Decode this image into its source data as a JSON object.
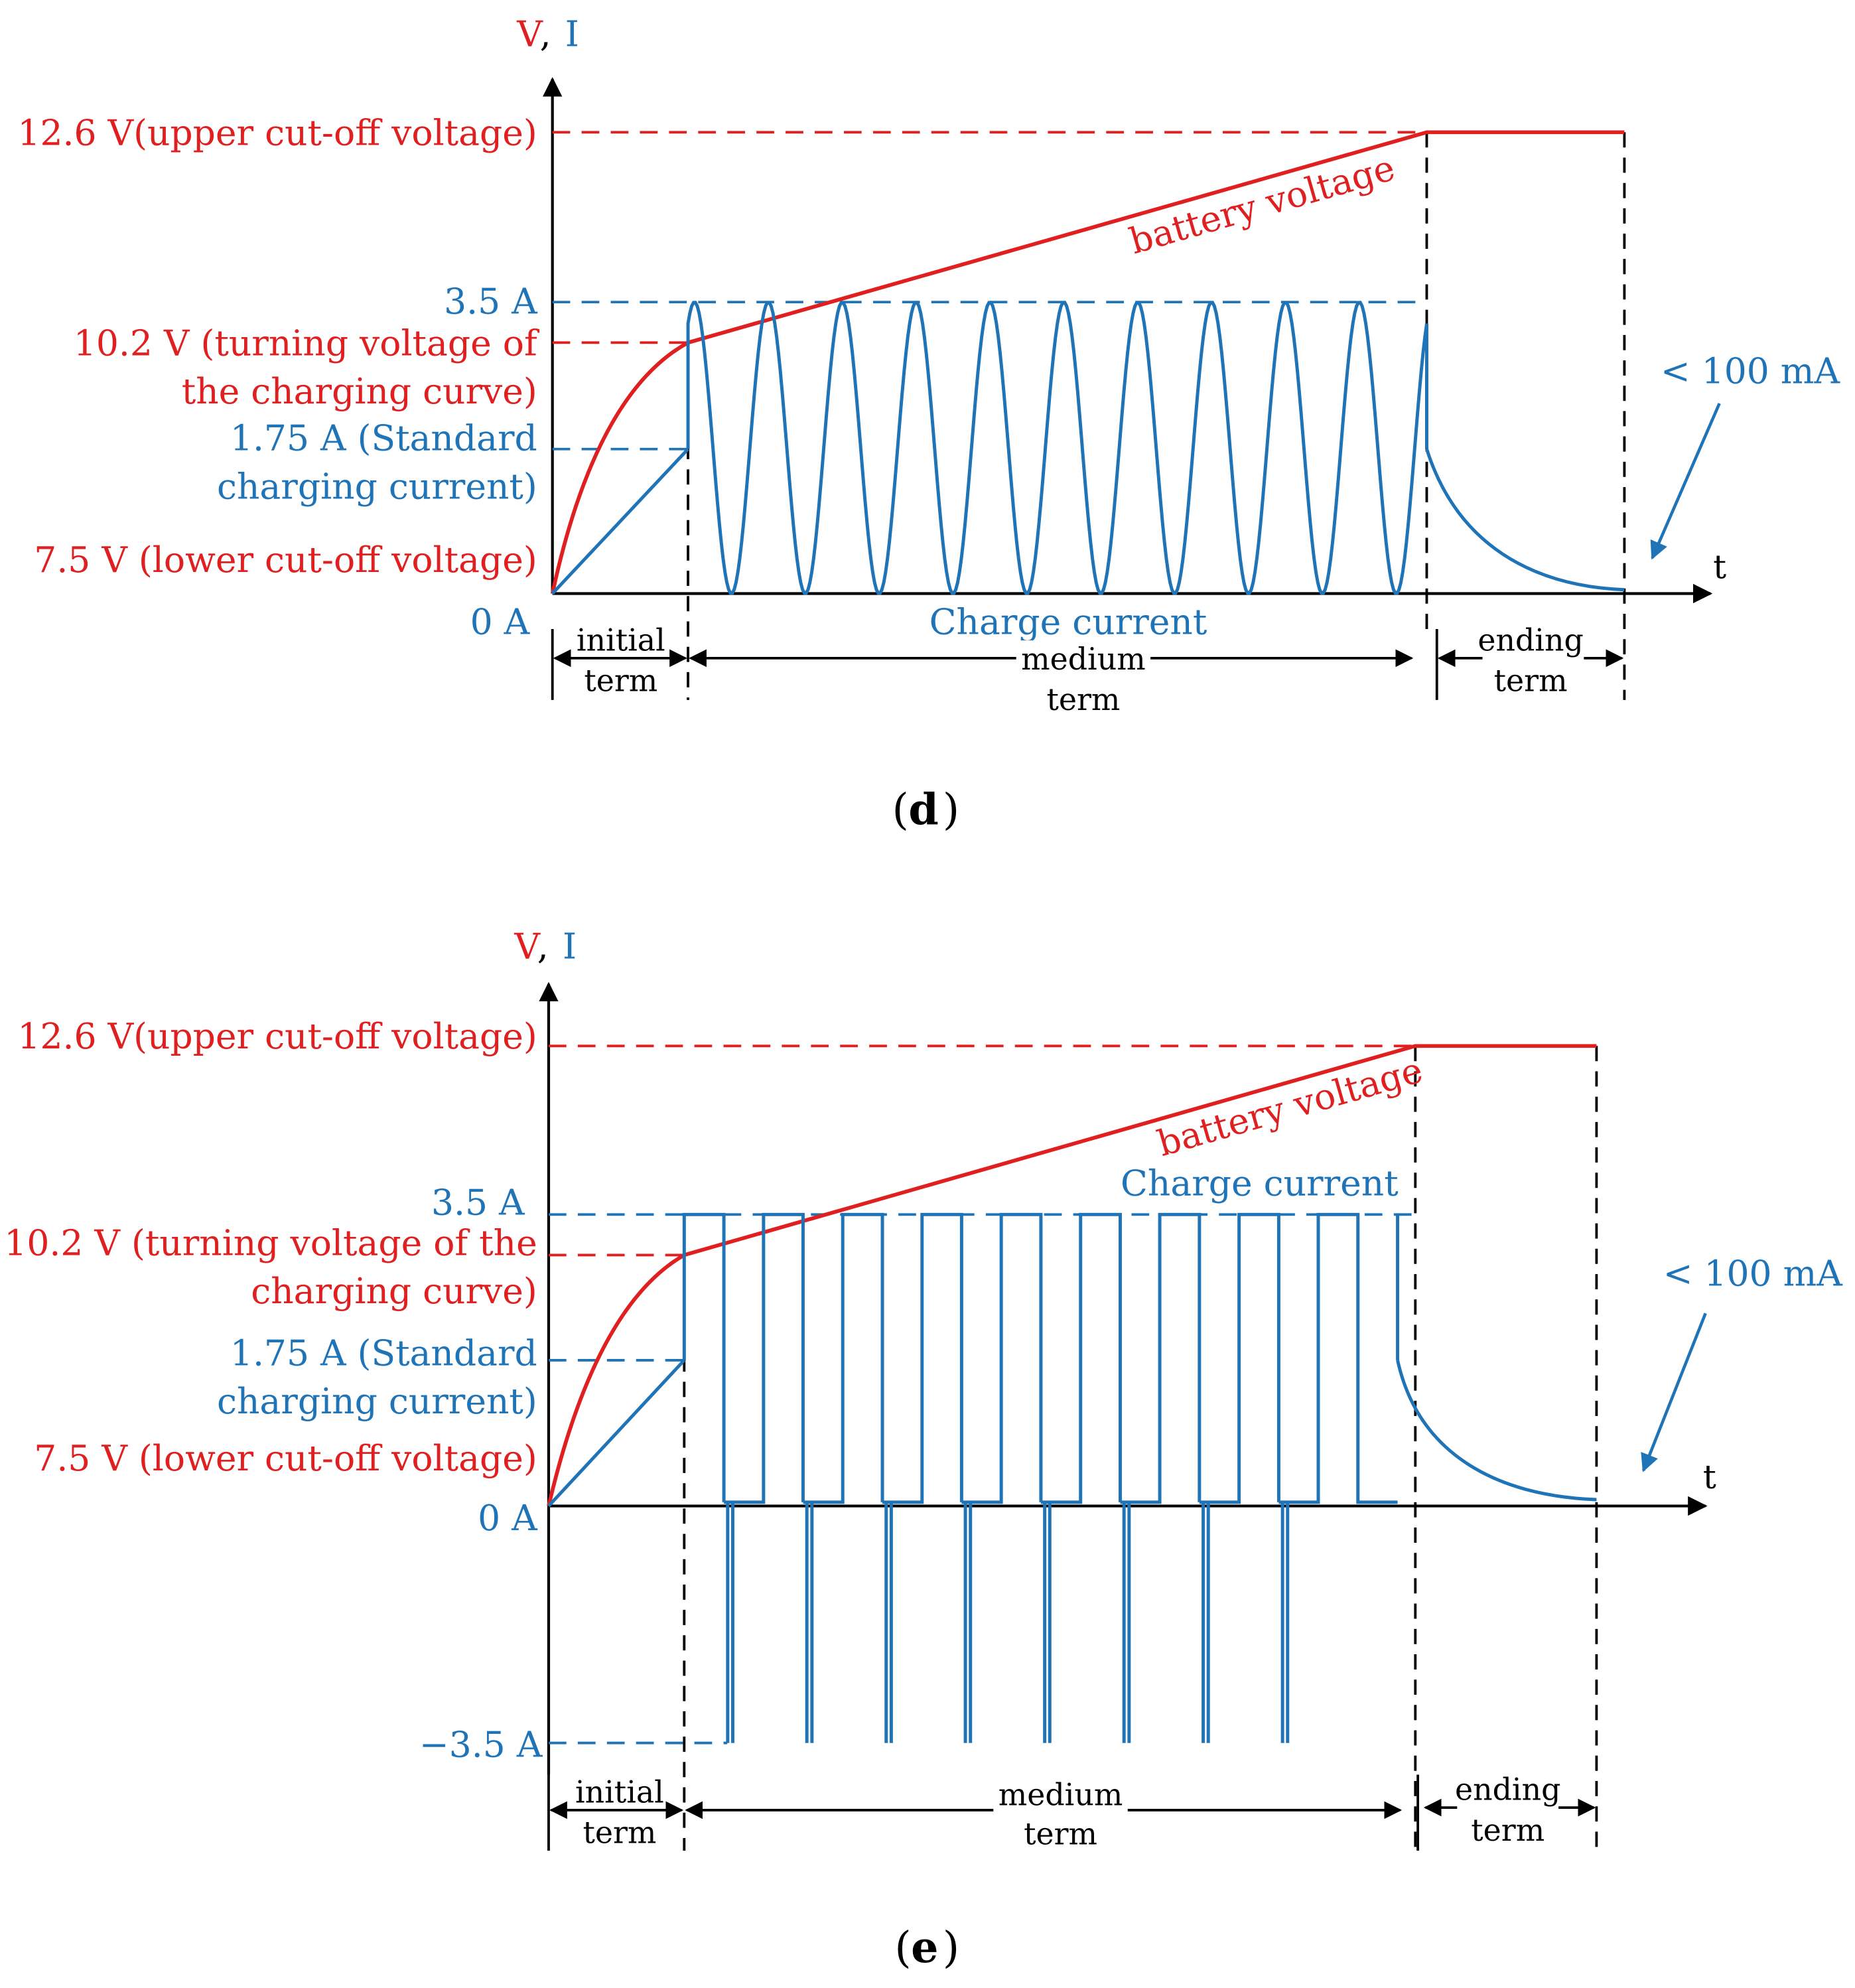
{
  "colors": {
    "voltage": "#e02020",
    "current": "#1f73b7",
    "axis": "#000000"
  },
  "panels": [
    {
      "id": "d",
      "caption": "d",
      "waveform": "sine",
      "pulse_count": 10,
      "axis": {
        "y_label_v": "V",
        "y_label_sep": ", ",
        "y_label_i": "I",
        "x_label": "t"
      },
      "labels": {
        "upper_voltage": "12.6 V(upper cut-off voltage)",
        "current_max": "3.5 A",
        "turning_voltage_l1": "10.2 V (turning voltage of",
        "turning_voltage_l2": "the charging curve)",
        "standard_current_l1": "1.75 A  (Standard",
        "standard_current_l2": "charging current)",
        "lower_voltage": "7.5 V (lower cut-off voltage)",
        "zero_current": "0 A",
        "battery_voltage": "battery voltage",
        "charge_current": "Charge current",
        "end_current": "< 100 mA"
      },
      "terms": {
        "initial_l1": "initial",
        "initial_l2": "term",
        "medium_l1": "medium",
        "medium_l2": "term",
        "ending_l1": "ending",
        "ending_l2": "term"
      }
    },
    {
      "id": "e",
      "caption": "e",
      "waveform": "square-with-negative-pulse",
      "pulse_count": 9,
      "axis": {
        "y_label_v": "V",
        "y_label_sep": ", ",
        "y_label_i": "I",
        "x_label": "t"
      },
      "labels": {
        "upper_voltage": "12.6 V(upper cut-off voltage)",
        "current_max": "3.5 A",
        "turning_voltage_l1": "10.2 V (turning voltage of the",
        "turning_voltage_l2": "charging curve)",
        "standard_current_l1": "1.75 A  (Standard",
        "standard_current_l2": "charging current)",
        "lower_voltage": "7.5 V (lower cut-off voltage)",
        "zero_current": "0 A",
        "current_min": "−3.5 A",
        "battery_voltage": "battery voltage",
        "charge_current": "Charge current",
        "end_current": "< 100 mA"
      },
      "terms": {
        "initial_l1": "initial",
        "initial_l2": "term",
        "medium_l1": "medium",
        "medium_l2": "term",
        "ending_l1": "ending",
        "ending_l2": "term"
      }
    }
  ]
}
